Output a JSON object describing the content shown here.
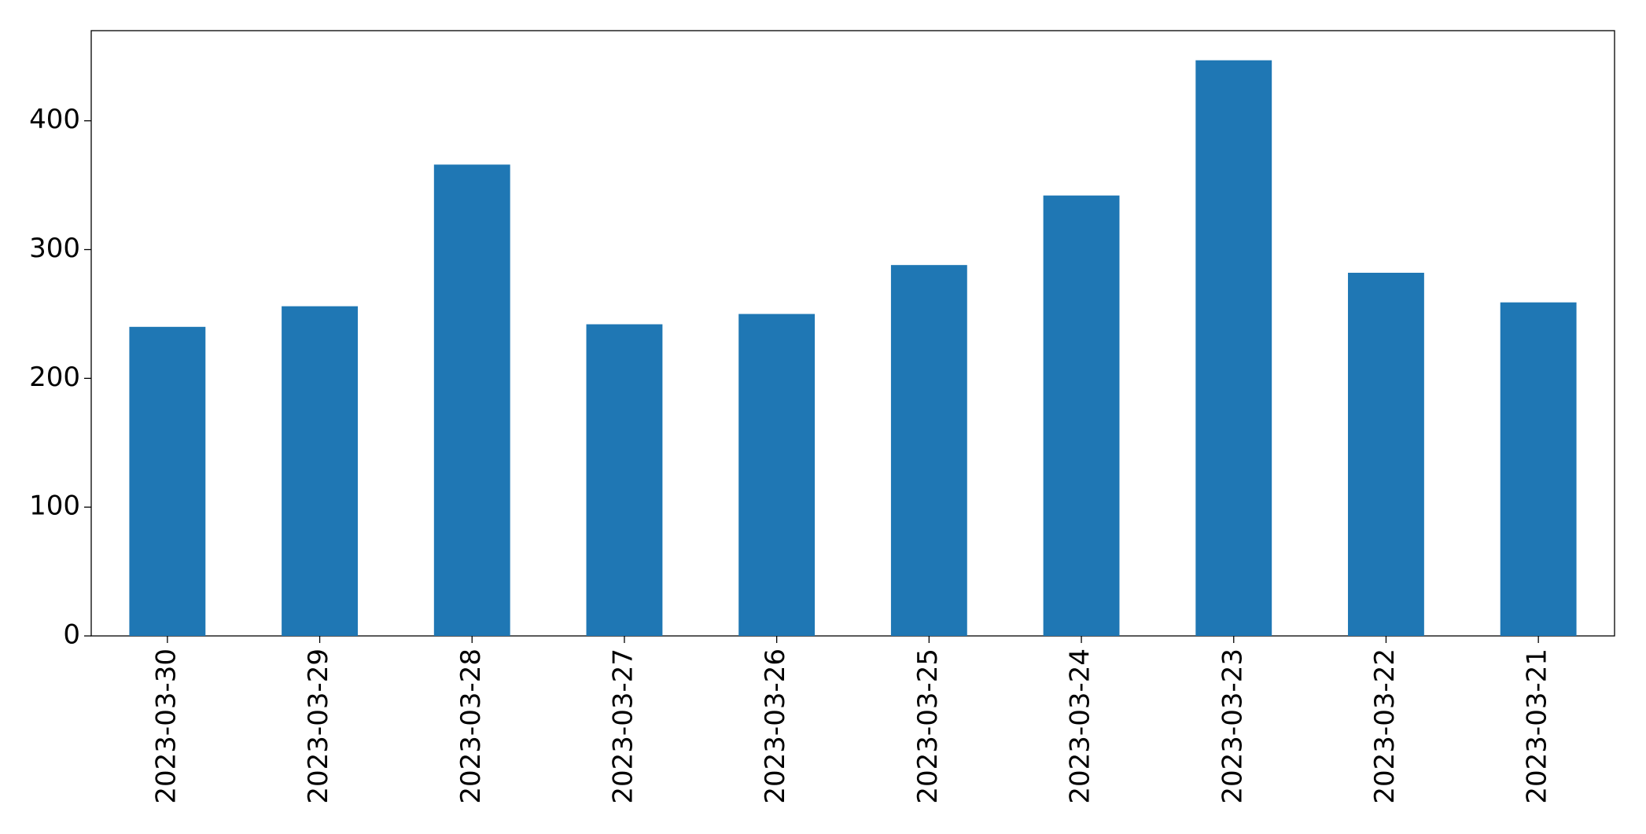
{
  "chart_data": {
    "type": "bar",
    "categories": [
      "2023-03-30",
      "2023-03-29",
      "2023-03-28",
      "2023-03-27",
      "2023-03-26",
      "2023-03-25",
      "2023-03-24",
      "2023-03-23",
      "2023-03-22",
      "2023-03-21"
    ],
    "values": [
      240,
      256,
      366,
      242,
      250,
      288,
      342,
      447,
      282,
      259
    ],
    "color": "#1f77b4",
    "ylim": [
      0,
      470
    ],
    "yticks": [
      0,
      100,
      200,
      300,
      400
    ],
    "grid": false
  }
}
